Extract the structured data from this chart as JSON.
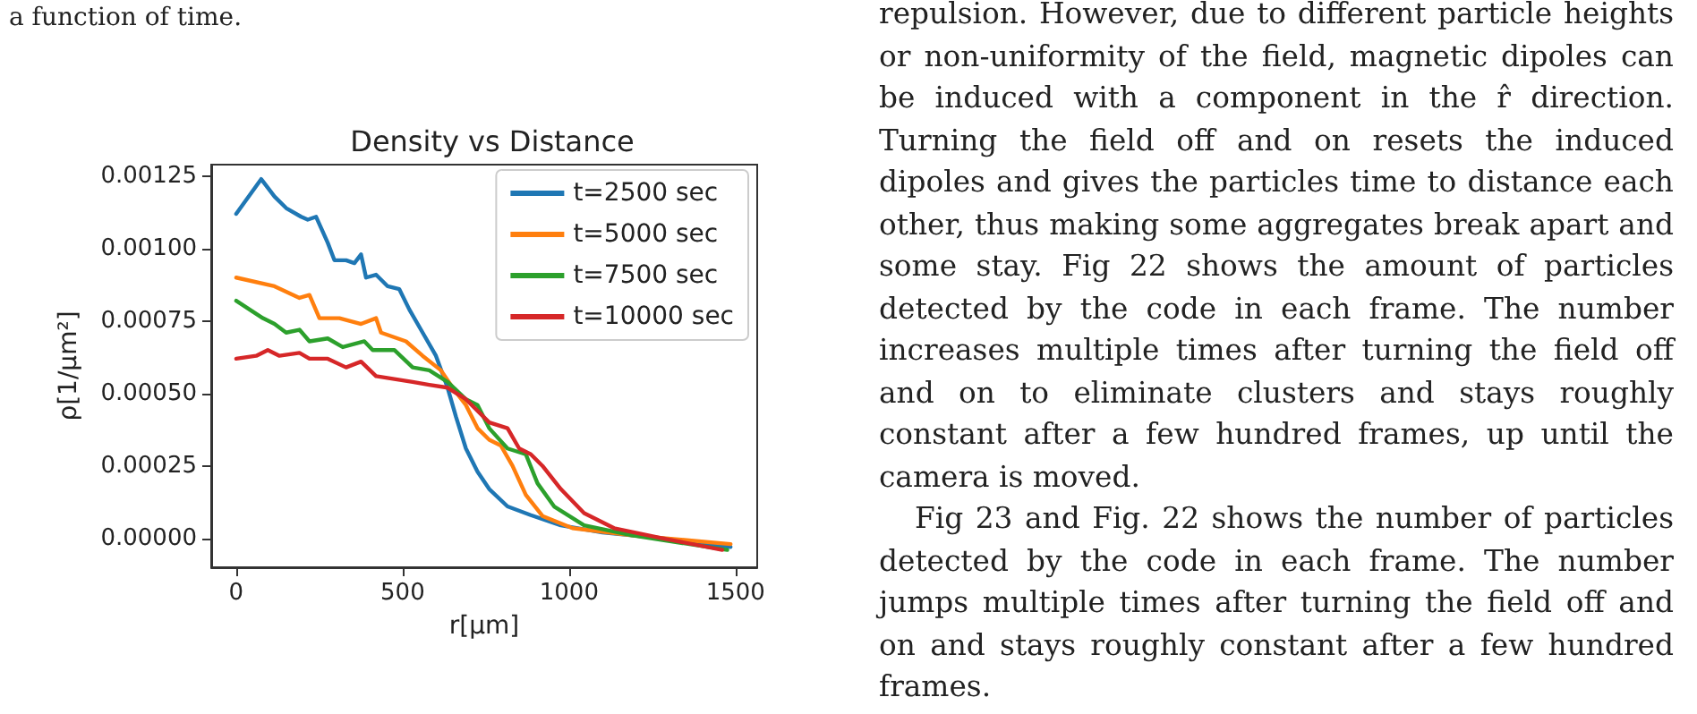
{
  "chart_data": {
    "type": "line",
    "title": "Density vs Distance",
    "xlabel": "r[μm]",
    "ylabel": "ρ[1/μm²]",
    "xlim": [
      -75,
      1565
    ],
    "xticks": [
      0,
      500,
      1000,
      1500
    ],
    "ylim": [
      -0.0001,
      0.00129
    ],
    "yticks": [
      {
        "value": 0,
        "label": "0.00000"
      },
      {
        "value": 0.00025,
        "label": "0.00025"
      },
      {
        "value": 0.0005,
        "label": "0.00050"
      },
      {
        "value": 0.00075,
        "label": "0.00075"
      },
      {
        "value": 0.001,
        "label": "0.00100"
      },
      {
        "value": 0.00125,
        "label": "0.00125"
      }
    ],
    "grid": false,
    "legend": "top right",
    "marker": "none",
    "line_style": "solid",
    "annotations": [
      "a function of time.",
      "repulsion. However, due to different particle heights or non-uniformity of the field, magnetic dipoles can be induced with a component in the r̂ direction. Turning the field off and on resets the induced dipoles and gives the particles time to distance each other, thus making some aggregates break apart and some stay. Fig 22 shows the amount of particles detected by the code in each frame. The number increases multiple times after turning the field off and on to eliminate clusters and stays roughly constant after a few hundred frames, up until the camera is moved.",
      "Fig 23 and Fig. 22 shows the number of particles detected by the code in each frame. The number jumps multiple times after turning the field off and on and stays roughly constant after a few hundred frames."
    ],
    "series": [
      {
        "name": "t=2500 sec",
        "color": "#1f77b4",
        "x": [
          0,
          75,
          115,
          150,
          195,
          215,
          240,
          275,
          295,
          330,
          355,
          375,
          390,
          420,
          455,
          490,
          520,
          560,
          600,
          635,
          660,
          690,
          725,
          760,
          815,
          885,
          975,
          1100,
          1280,
          1485
        ],
        "values": [
          0.00112,
          0.00124,
          0.00118,
          0.00114,
          0.00111,
          0.0011,
          0.00111,
          0.00102,
          0.00096,
          0.00096,
          0.00095,
          0.00098,
          0.0009,
          0.00091,
          0.00087,
          0.00086,
          0.00079,
          0.00071,
          0.00063,
          0.00052,
          0.00042,
          0.00031,
          0.00023,
          0.00017,
          0.00011,
          8e-05,
          4.5e-05,
          2e-05,
          0,
          -3e-05
        ]
      },
      {
        "name": "t=5000 sec",
        "color": "#ff7f0e",
        "x": [
          0,
          115,
          190,
          220,
          250,
          310,
          375,
          420,
          435,
          510,
          560,
          615,
          650,
          690,
          725,
          760,
          795,
          830,
          870,
          920,
          1010,
          1190,
          1485
        ],
        "values": [
          0.0009,
          0.00087,
          0.00083,
          0.00084,
          0.00076,
          0.00076,
          0.00074,
          0.00076,
          0.00071,
          0.00068,
          0.00063,
          0.00058,
          0.00052,
          0.00046,
          0.00038,
          0.00034,
          0.00032,
          0.00025,
          0.00015,
          7.7e-05,
          3.5e-05,
          1e-05,
          -2e-05
        ]
      },
      {
        "name": "t=7500 sec",
        "color": "#2ca02c",
        "x": [
          0,
          80,
          115,
          150,
          190,
          220,
          275,
          320,
          385,
          410,
          475,
          530,
          580,
          635,
          690,
          725,
          760,
          815,
          870,
          905,
          955,
          1045,
          1190,
          1475
        ],
        "values": [
          0.00082,
          0.00076,
          0.00074,
          0.00071,
          0.00072,
          0.00068,
          0.00069,
          0.00066,
          0.00068,
          0.00065,
          0.00065,
          0.00059,
          0.00058,
          0.00054,
          0.00048,
          0.00046,
          0.00038,
          0.00031,
          0.00029,
          0.00019,
          0.00011,
          4.5e-05,
          1e-05,
          -4e-05
        ]
      },
      {
        "name": "t=10000 sec",
        "color": "#d62728",
        "x": [
          0,
          60,
          95,
          130,
          190,
          220,
          275,
          330,
          375,
          420,
          475,
          530,
          580,
          635,
          690,
          760,
          815,
          850,
          885,
          920,
          975,
          1045,
          1135,
          1280,
          1460
        ],
        "values": [
          0.00062,
          0.00063,
          0.00065,
          0.00063,
          0.00064,
          0.00062,
          0.00062,
          0.00059,
          0.00061,
          0.00056,
          0.00055,
          0.00054,
          0.00053,
          0.00052,
          0.00048,
          0.0004,
          0.00038,
          0.00031,
          0.00029,
          0.00025,
          0.00017,
          8.7e-05,
          3.5e-05,
          0,
          -4e-05
        ]
      }
    ]
  }
}
